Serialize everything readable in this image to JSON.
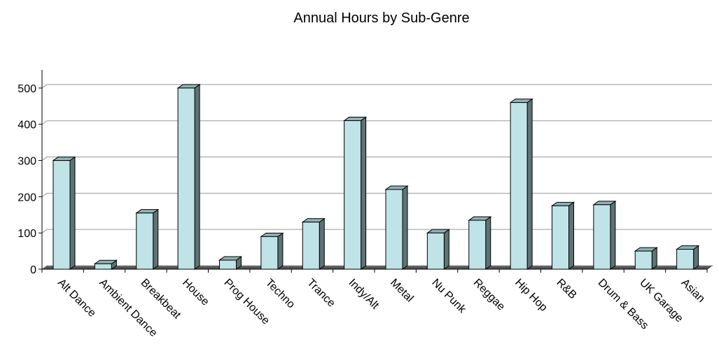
{
  "chart_data": {
    "type": "bar",
    "title": "Annual Hours by Sub-Genre",
    "categories": [
      "Alt Dance",
      "Ambient Dance",
      "Breakbeat",
      "House",
      "Prog House",
      "Techno",
      "Trance",
      "Indy/Alt",
      "Metal",
      "Nu Punk",
      "Reggae",
      "Hip Hop",
      "R&B",
      "Drum & Bass",
      "UK Garage",
      "Asian"
    ],
    "values": [
      300,
      15,
      155,
      500,
      25,
      90,
      130,
      410,
      220,
      100,
      135,
      460,
      175,
      178,
      50,
      55
    ],
    "color": "#bfe3e6",
    "ylim": [
      0,
      550
    ],
    "yticks": [
      0,
      100,
      200,
      300,
      400,
      500
    ],
    "grid": true
  }
}
